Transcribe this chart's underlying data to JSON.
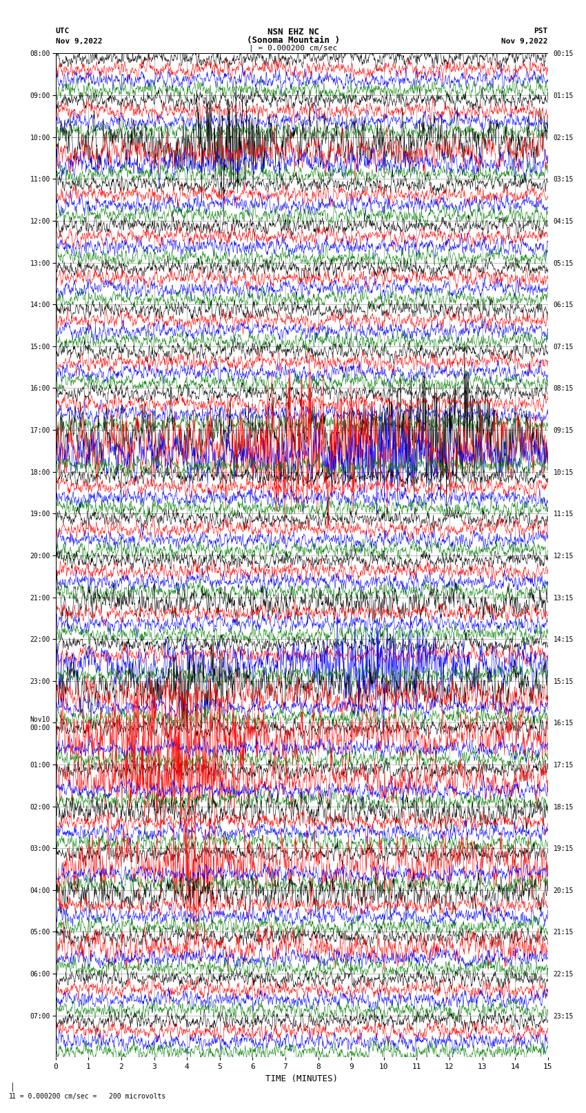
{
  "title_line1": "NSN EHZ NC",
  "title_line2": "(Sonoma Mountain )",
  "title_scale": "| = 0.000200 cm/sec",
  "left_header_line1": "UTC",
  "left_header_line2": "Nov 9,2022",
  "right_header_line1": "PST",
  "right_header_line2": "Nov 9,2022",
  "bottom_label": "TIME (MINUTES)",
  "bottom_note": "1 = 0.000200 cm/sec =   200 microvolts",
  "utc_times": [
    "08:00",
    "09:00",
    "10:00",
    "11:00",
    "12:00",
    "13:00",
    "14:00",
    "15:00",
    "16:00",
    "17:00",
    "18:00",
    "19:00",
    "20:00",
    "21:00",
    "22:00",
    "23:00",
    "Nov10\n00:00",
    "01:00",
    "02:00",
    "03:00",
    "04:00",
    "05:00",
    "06:00",
    "07:00"
  ],
  "pst_times": [
    "00:15",
    "01:15",
    "02:15",
    "03:15",
    "04:15",
    "05:15",
    "06:15",
    "07:15",
    "08:15",
    "09:15",
    "10:15",
    "11:15",
    "12:15",
    "13:15",
    "14:15",
    "15:15",
    "16:15",
    "17:15",
    "18:15",
    "19:15",
    "20:15",
    "21:15",
    "22:15",
    "23:15"
  ],
  "n_rows": 24,
  "traces_per_row": 4,
  "colors": [
    "black",
    "red",
    "blue",
    "green"
  ],
  "x_min": 0,
  "x_max": 15,
  "x_ticks": [
    0,
    1,
    2,
    3,
    4,
    5,
    6,
    7,
    8,
    9,
    10,
    11,
    12,
    13,
    14,
    15
  ],
  "fig_width": 8.5,
  "fig_height": 16.13,
  "bg_color": "white",
  "seed": 42
}
